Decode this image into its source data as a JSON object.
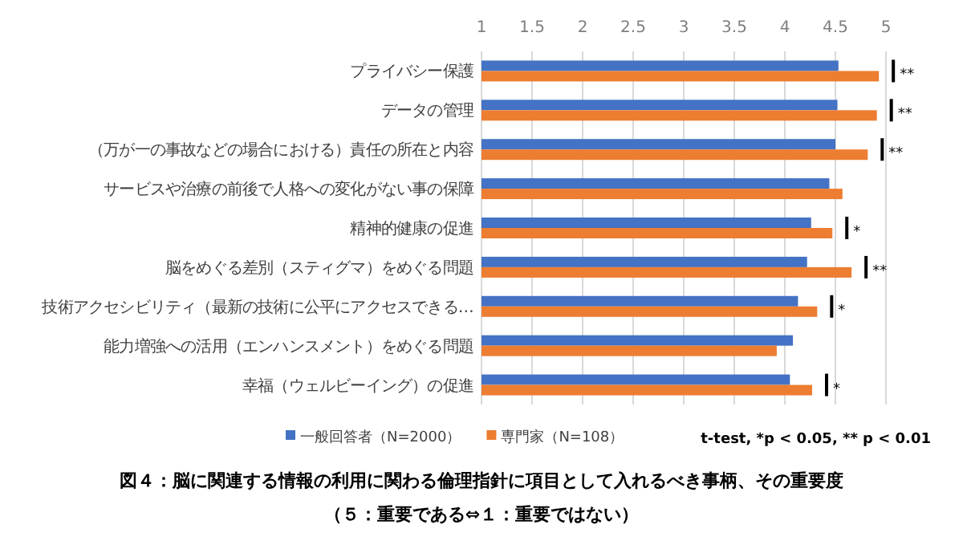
{
  "chart_data": {
    "type": "bar",
    "orientation": "horizontal",
    "title": "図４：脳に関連する情報の利用に関わる倫理指針に項目として入れるべき事柄、その重要度",
    "subtitle": "（５：重要である⇔１：重要ではない）",
    "categories": [
      "プライバシー保護",
      "データの管理",
      "（万が一の事故などの場合における）責任の所在と内容",
      "サービスや治療の前後で人格への変化がない事の保障",
      "精神的健康の促進",
      "脳をめぐる差別（スティグマ）をめぐる問題",
      "技術アクセシビリティ（最新の技術に公平にアクセスできる…",
      "能力増強への活用（エンハンスメント）をめぐる問題",
      "幸福（ウェルビーイング）の促進"
    ],
    "series": [
      {
        "name": "一般回答者（N=2000）",
        "color": "#4472c4",
        "values": [
          4.53,
          4.52,
          4.5,
          4.44,
          4.26,
          4.22,
          4.13,
          4.08,
          4.05
        ]
      },
      {
        "name": "専門家（N=108）",
        "color": "#ed7d31",
        "values": [
          4.93,
          4.91,
          4.82,
          4.57,
          4.47,
          4.66,
          4.32,
          3.92,
          4.27
        ]
      }
    ],
    "xlim": [
      1,
      5
    ],
    "xticks": [
      1,
      1.5,
      2,
      2.5,
      3,
      3.5,
      4,
      4.5,
      5
    ],
    "grid": "x",
    "legend": "bottom",
    "annotations": [
      "**",
      "**",
      "**",
      "*",
      "**",
      "*",
      "*",
      "t-test, *p < 0.05, ** p < 0.01"
    ]
  }
}
